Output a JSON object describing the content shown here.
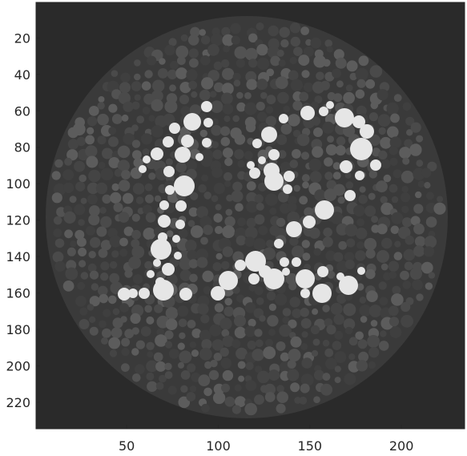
{
  "image": {
    "subject": "Ishihara color-blindness test plate",
    "digits": "12",
    "colors": {
      "background": "#2a2a2a",
      "plate_base": "#3a3a3a",
      "dot_dark": "#4a4a4a",
      "dot_mid": "#5c5c5c",
      "digit_dot": "#e6e6e6"
    }
  },
  "axes": {
    "x_ticks": [
      "50",
      "100",
      "150",
      "200"
    ],
    "y_ticks": [
      "20",
      "40",
      "60",
      "80",
      "100",
      "120",
      "140",
      "160",
      "180",
      "200",
      "220"
    ],
    "xlim": [
      0.5,
      234.5
    ],
    "ylim": [
      0.5,
      234.5
    ]
  }
}
